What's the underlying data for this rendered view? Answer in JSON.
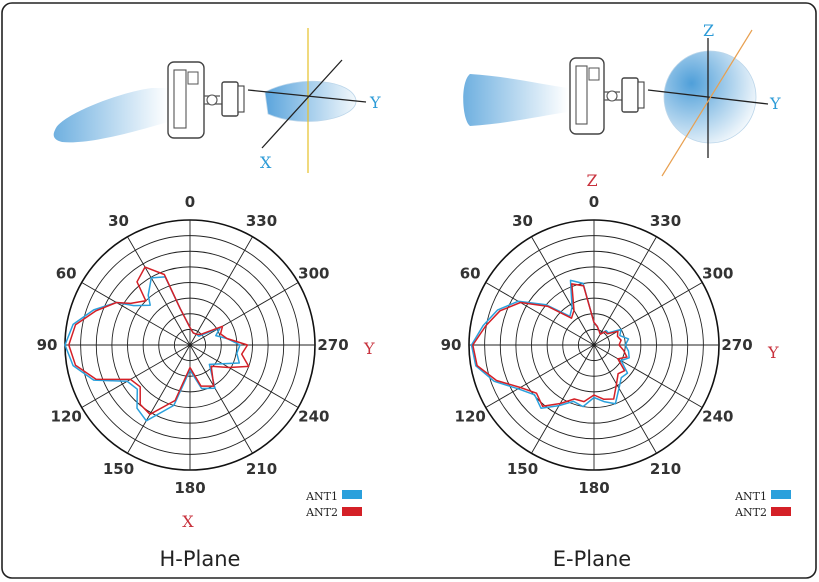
{
  "colors": {
    "ant1": "#2aa0dc",
    "ant2": "#d42027",
    "axis_blue": "#2d9bd7",
    "axis_red": "#c8313c",
    "axis_orange": "#e8a050",
    "axis_yellow": "#e6c028"
  },
  "chart_data": [
    {
      "type": "polar",
      "title": "H-Plane",
      "angle_labels": [
        "0",
        "30",
        "60",
        "90",
        "120",
        "150",
        "180",
        "210",
        "240",
        "270",
        "300",
        "330"
      ],
      "rings": 8,
      "top_axis_label": "",
      "right_axis_label": "Y",
      "bottom_axis_label": "X",
      "legend": [
        {
          "name": "ANT1"
        },
        {
          "name": "ANT2"
        }
      ],
      "series": [
        {
          "name": "ANT1",
          "angles": [
            0,
            15,
            20,
            30,
            40,
            45,
            55,
            60,
            70,
            80,
            90,
            100,
            110,
            120,
            130,
            140,
            150,
            165,
            180,
            195,
            210,
            225,
            240,
            250,
            260,
            270,
            280,
            290,
            300,
            315,
            330,
            345
          ],
          "values": [
            0.14,
            0.3,
            0.58,
            0.62,
            0.52,
            0.45,
            0.55,
            0.68,
            0.82,
            0.95,
            1.0,
            0.95,
            0.82,
            0.58,
            0.55,
            0.66,
            0.7,
            0.5,
            0.2,
            0.36,
            0.4,
            0.22,
            0.3,
            0.42,
            0.38,
            0.4,
            0.3,
            0.22,
            0.28,
            0.1,
            0.1,
            0.1
          ]
        },
        {
          "name": "ANT2",
          "angles": [
            0,
            15,
            20,
            30,
            40,
            45,
            55,
            60,
            70,
            80,
            90,
            100,
            110,
            120,
            130,
            140,
            150,
            165,
            180,
            195,
            210,
            225,
            240,
            250,
            260,
            270,
            280,
            290,
            300,
            315,
            330,
            345
          ],
          "values": [
            0.14,
            0.3,
            0.6,
            0.72,
            0.66,
            0.5,
            0.58,
            0.68,
            0.8,
            0.93,
            0.97,
            0.93,
            0.8,
            0.55,
            0.52,
            0.62,
            0.64,
            0.46,
            0.18,
            0.34,
            0.38,
            0.24,
            0.36,
            0.5,
            0.42,
            0.46,
            0.3,
            0.26,
            0.3,
            0.12,
            0.1,
            0.1
          ]
        }
      ]
    },
    {
      "type": "polar",
      "title": "E-Plane",
      "angle_labels": [
        "0",
        "30",
        "60",
        "90",
        "120",
        "150",
        "180",
        "210",
        "240",
        "270",
        "300",
        "330"
      ],
      "rings": 8,
      "top_axis_label": "Z",
      "right_axis_label": "Y",
      "bottom_axis_label": "",
      "legend": [
        {
          "name": "ANT1"
        },
        {
          "name": "ANT2"
        }
      ],
      "series": [
        {
          "name": "ANT1",
          "angles": [
            0,
            10,
            20,
            30,
            40,
            50,
            60,
            70,
            80,
            90,
            100,
            110,
            120,
            130,
            140,
            150,
            160,
            170,
            180,
            190,
            200,
            210,
            220,
            230,
            240,
            250,
            260,
            270,
            280,
            290,
            300,
            310,
            320,
            330,
            340,
            350
          ],
          "values": [
            0.18,
            0.5,
            0.55,
            0.35,
            0.3,
            0.5,
            0.7,
            0.82,
            0.9,
            0.98,
            0.96,
            0.85,
            0.7,
            0.62,
            0.66,
            0.56,
            0.48,
            0.5,
            0.42,
            0.46,
            0.5,
            0.4,
            0.34,
            0.35,
            0.25,
            0.3,
            0.28,
            0.25,
            0.28,
            0.22,
            0.25,
            0.15,
            0.15,
            0.1,
            0.12,
            0.15
          ]
        },
        {
          "name": "ANT2",
          "angles": [
            0,
            10,
            20,
            30,
            40,
            50,
            60,
            70,
            80,
            90,
            100,
            110,
            120,
            130,
            140,
            150,
            160,
            170,
            180,
            190,
            200,
            210,
            220,
            230,
            240,
            250,
            260,
            270,
            280,
            290,
            300,
            310,
            320,
            330,
            340,
            350
          ],
          "values": [
            0.18,
            0.48,
            0.52,
            0.32,
            0.28,
            0.48,
            0.68,
            0.8,
            0.88,
            0.97,
            0.95,
            0.83,
            0.68,
            0.6,
            0.64,
            0.54,
            0.46,
            0.46,
            0.4,
            0.44,
            0.46,
            0.36,
            0.3,
            0.32,
            0.22,
            0.28,
            0.24,
            0.2,
            0.22,
            0.2,
            0.22,
            0.14,
            0.14,
            0.1,
            0.12,
            0.15
          ]
        }
      ]
    }
  ],
  "diagrams": [
    {
      "name": "h-plane-diagram",
      "axis_labels": [
        "X",
        "Y"
      ]
    },
    {
      "name": "e-plane-diagram",
      "axis_labels": [
        "Z",
        "Y"
      ]
    }
  ]
}
